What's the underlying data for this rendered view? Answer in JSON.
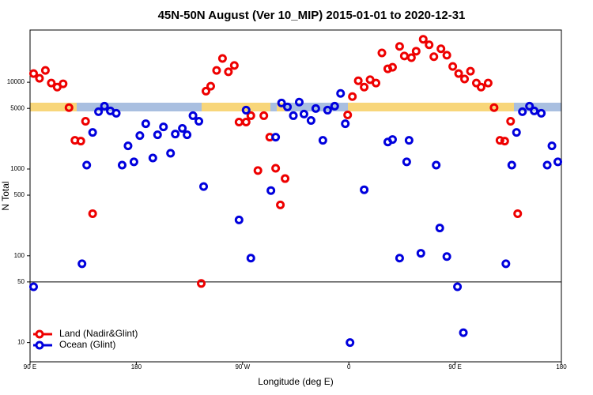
{
  "chart_data": {
    "type": "scatter",
    "title": "45N-50N August (Ver 10_MIP)   2015-01-01 to 2020-12-31",
    "xlabel": "Longitude (deg E)",
    "ylabel": "N Total",
    "xlim": [
      90,
      540
    ],
    "ylim": [
      6,
      40000
    ],
    "ylog": true,
    "xticks": [
      {
        "value": 90,
        "label": "90 E"
      },
      {
        "value": 180,
        "label": "180"
      },
      {
        "value": 270,
        "label": "90 W"
      },
      {
        "value": 360,
        "label": "0"
      },
      {
        "value": 450,
        "label": "90 E"
      },
      {
        "value": 540,
        "label": "180"
      }
    ],
    "yticks": [
      10,
      50,
      100,
      500,
      1000,
      5000,
      10000
    ],
    "hline": 50,
    "legend": "bottom-left",
    "series": [
      {
        "name": "Land (Nadir&Glint)",
        "color": "#ee0000",
        "x": [
          93,
          98,
          103,
          108,
          113,
          118,
          123,
          128,
          133,
          137,
          143,
          235,
          239,
          243,
          248,
          253,
          258,
          263,
          267,
          273,
          277,
          283,
          288,
          293,
          298,
          302,
          306,
          359,
          363,
          368,
          373,
          378,
          383,
          388,
          393,
          397,
          403,
          407,
          413,
          417,
          423,
          428,
          432,
          438,
          443,
          448,
          453,
          458,
          463,
          468,
          472,
          478,
          483,
          488,
          492,
          497,
          503
        ],
        "values": [
          12600,
          11100,
          13700,
          9800,
          8800,
          9600,
          5100,
          2140,
          2100,
          3550,
          306,
          48,
          7900,
          9000,
          13700,
          18800,
          13200,
          15600,
          3480,
          3480,
          4120,
          960,
          4120,
          2330,
          1020,
          386,
          776,
          4200,
          6840,
          10400,
          8800,
          10700,
          9800,
          21800,
          14300,
          14900,
          25900,
          20100,
          19200,
          22800,
          31300,
          27000,
          19700,
          24300,
          20500,
          15200,
          12600,
          10900,
          13400,
          9800,
          8800,
          9800,
          5100,
          2140,
          2100,
          3550,
          306
        ]
      },
      {
        "name": "Ocean (Glint)",
        "color": "#0000dd",
        "x": [
          93,
          134,
          138,
          143,
          148,
          153,
          158,
          163,
          168,
          173,
          178,
          183,
          188,
          194,
          198,
          203,
          209,
          213,
          219,
          223,
          228,
          233,
          237,
          267,
          273,
          277,
          294,
          298,
          303,
          308,
          313,
          318,
          322,
          328,
          332,
          338,
          342,
          348,
          353,
          357,
          361,
          373,
          393,
          397,
          403,
          409,
          411,
          421,
          434,
          437,
          443,
          452,
          457,
          493,
          498,
          502,
          507,
          513,
          517,
          523,
          528,
          532,
          537
        ],
        "values": [
          44,
          81,
          1110,
          2640,
          4580,
          5300,
          4680,
          4390,
          1110,
          1850,
          1210,
          2430,
          3330,
          1340,
          2480,
          3060,
          1520,
          2530,
          2940,
          2480,
          4120,
          3550,
          628,
          259,
          4770,
          94,
          565,
          2330,
          5770,
          5200,
          4120,
          5900,
          4300,
          3630,
          4980,
          2140,
          4770,
          5300,
          7440,
          3330,
          10,
          577,
          2050,
          2190,
          94,
          1210,
          2140,
          107,
          1110,
          209,
          98,
          44,
          13,
          81,
          1110,
          2640,
          4580,
          5300,
          4680,
          4390,
          1110,
          1850,
          1210
        ]
      }
    ]
  }
}
